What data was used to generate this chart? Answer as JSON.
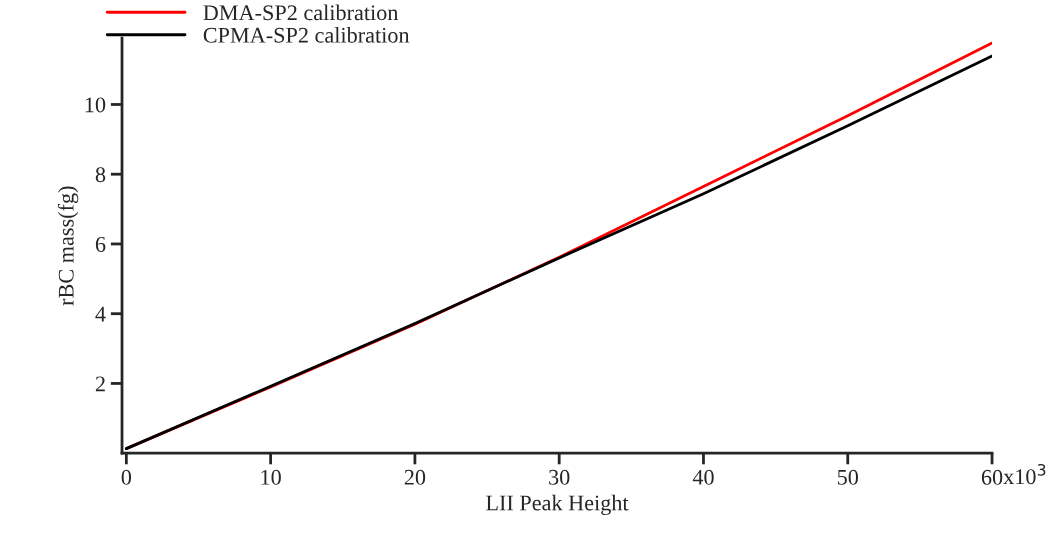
{
  "chart_data": {
    "type": "line",
    "xlabel": "LII Peak Height",
    "ylabel": "rBC mass(fg)",
    "series": [
      {
        "name": "DMA-SP2 calibration",
        "color": "#ff0000",
        "x": [
          0,
          10,
          20,
          30,
          40,
          50,
          60
        ],
        "values": [
          0.13,
          1.9,
          3.7,
          5.62,
          7.65,
          9.68,
          11.76
        ]
      },
      {
        "name": "CPMA-SP2 calibration",
        "color": "#000000",
        "x": [
          0,
          10,
          20,
          30,
          40,
          50,
          60
        ],
        "values": [
          0.13,
          1.92,
          3.72,
          5.6,
          7.44,
          9.39,
          11.39
        ]
      }
    ],
    "xlim": [
      -0.3,
      60
    ],
    "ylim": [
      0,
      11.9
    ],
    "xticks": [
      0,
      10,
      20,
      30,
      40,
      50,
      60
    ],
    "annotations": [
      "x10$^{3}$"
    ],
    "yticks": [
      2,
      4,
      6,
      8,
      10
    ],
    "grid": false,
    "legend": "top left",
    "line_style": "solid",
    "marker": "none"
  }
}
